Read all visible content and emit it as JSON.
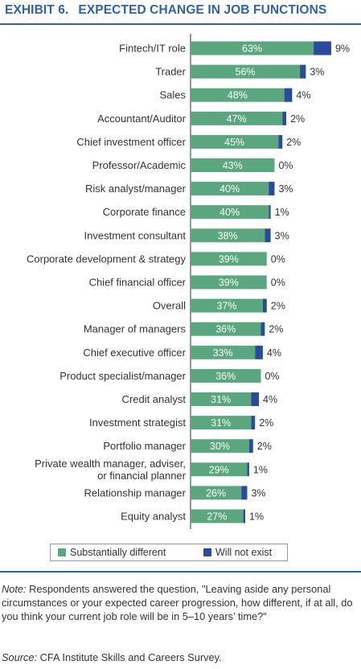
{
  "header": {
    "exhibit_label": "EXHIBIT 6.",
    "title": "EXPECTED CHANGE IN JOB FUNCTIONS"
  },
  "colors": {
    "substantially_different": "#5aa67e",
    "will_not_exist": "#2b4a9b",
    "axis": "#555555",
    "title": "#2f62a8"
  },
  "chart_data": {
    "type": "bar",
    "orientation": "horizontal",
    "stacked": true,
    "categories": [
      "Fintech/IT role",
      "Trader",
      "Sales",
      "Accountant/Auditor",
      "Chief investment officer",
      "Professor/Academic",
      "Risk analyst/manager",
      "Corporate finance",
      "Investment consultant",
      "Corporate development & strategy",
      "Chief financial officer",
      "Overall",
      "Manager of managers",
      "Chief executive officer",
      "Product specialist/manager",
      "Credit analyst",
      "Investment strategist",
      "Portfolio manager",
      "Private wealth manager, adviser, or financial planner",
      "Relationship manager",
      "Equity analyst"
    ],
    "category_lines": [
      [
        "Fintech/IT role"
      ],
      [
        "Trader"
      ],
      [
        "Sales"
      ],
      [
        "Accountant/Auditor"
      ],
      [
        "Chief investment officer"
      ],
      [
        "Professor/Academic"
      ],
      [
        "Risk analyst/manager"
      ],
      [
        "Corporate finance"
      ],
      [
        "Investment consultant"
      ],
      [
        "Corporate development & strategy"
      ],
      [
        "Chief financial officer"
      ],
      [
        "Overall"
      ],
      [
        "Manager of managers"
      ],
      [
        "Chief executive officer"
      ],
      [
        "Product specialist/manager"
      ],
      [
        "Credit analyst"
      ],
      [
        "Investment strategist"
      ],
      [
        "Portfolio manager"
      ],
      [
        "Private wealth manager, adviser,",
        "or financial planner"
      ],
      [
        "Relationship manager"
      ],
      [
        "Equity analyst"
      ]
    ],
    "series": [
      {
        "name": "Substantially different",
        "values": [
          63,
          56,
          48,
          47,
          45,
          43,
          40,
          40,
          38,
          39,
          39,
          37,
          36,
          33,
          36,
          31,
          31,
          30,
          29,
          26,
          27
        ]
      },
      {
        "name": "Will not exist",
        "values": [
          9,
          3,
          4,
          2,
          2,
          0,
          3,
          1,
          3,
          0,
          0,
          2,
          2,
          4,
          0,
          4,
          2,
          2,
          1,
          3,
          1
        ]
      }
    ],
    "data_labels": {
      "inside": [
        "63%",
        "56%",
        "48%",
        "47%",
        "45%",
        "43%",
        "40%",
        "40%",
        "38%",
        "39%",
        "39%",
        "37%",
        "36%",
        "33%",
        "36%",
        "31%",
        "31%",
        "30%",
        "29%",
        "26%",
        "27%"
      ],
      "outside": [
        "9%",
        "3%",
        "4%",
        "2%",
        "2%",
        "0%",
        "3%",
        "1%",
        "3%",
        "0%",
        "0%",
        "2%",
        "2%",
        "4%",
        "0%",
        "4%",
        "2%",
        "2%",
        "1%",
        "3%",
        "1%"
      ]
    },
    "xlim": [
      0,
      75
    ],
    "grid": false,
    "legend_position": "bottom"
  },
  "legend": {
    "items": [
      "Substantially different",
      "Will not exist"
    ]
  },
  "footer": {
    "note_label": "Note:",
    "note_text": " Respondents answered the question, \"Leaving aside any personal circumstances or your expected career progression, how different, if at all, do you think your current job role will be in 5–10 years’ time?\"",
    "source_label": "Source:",
    "source_text": " CFA Institute Skills and Careers Survey."
  }
}
